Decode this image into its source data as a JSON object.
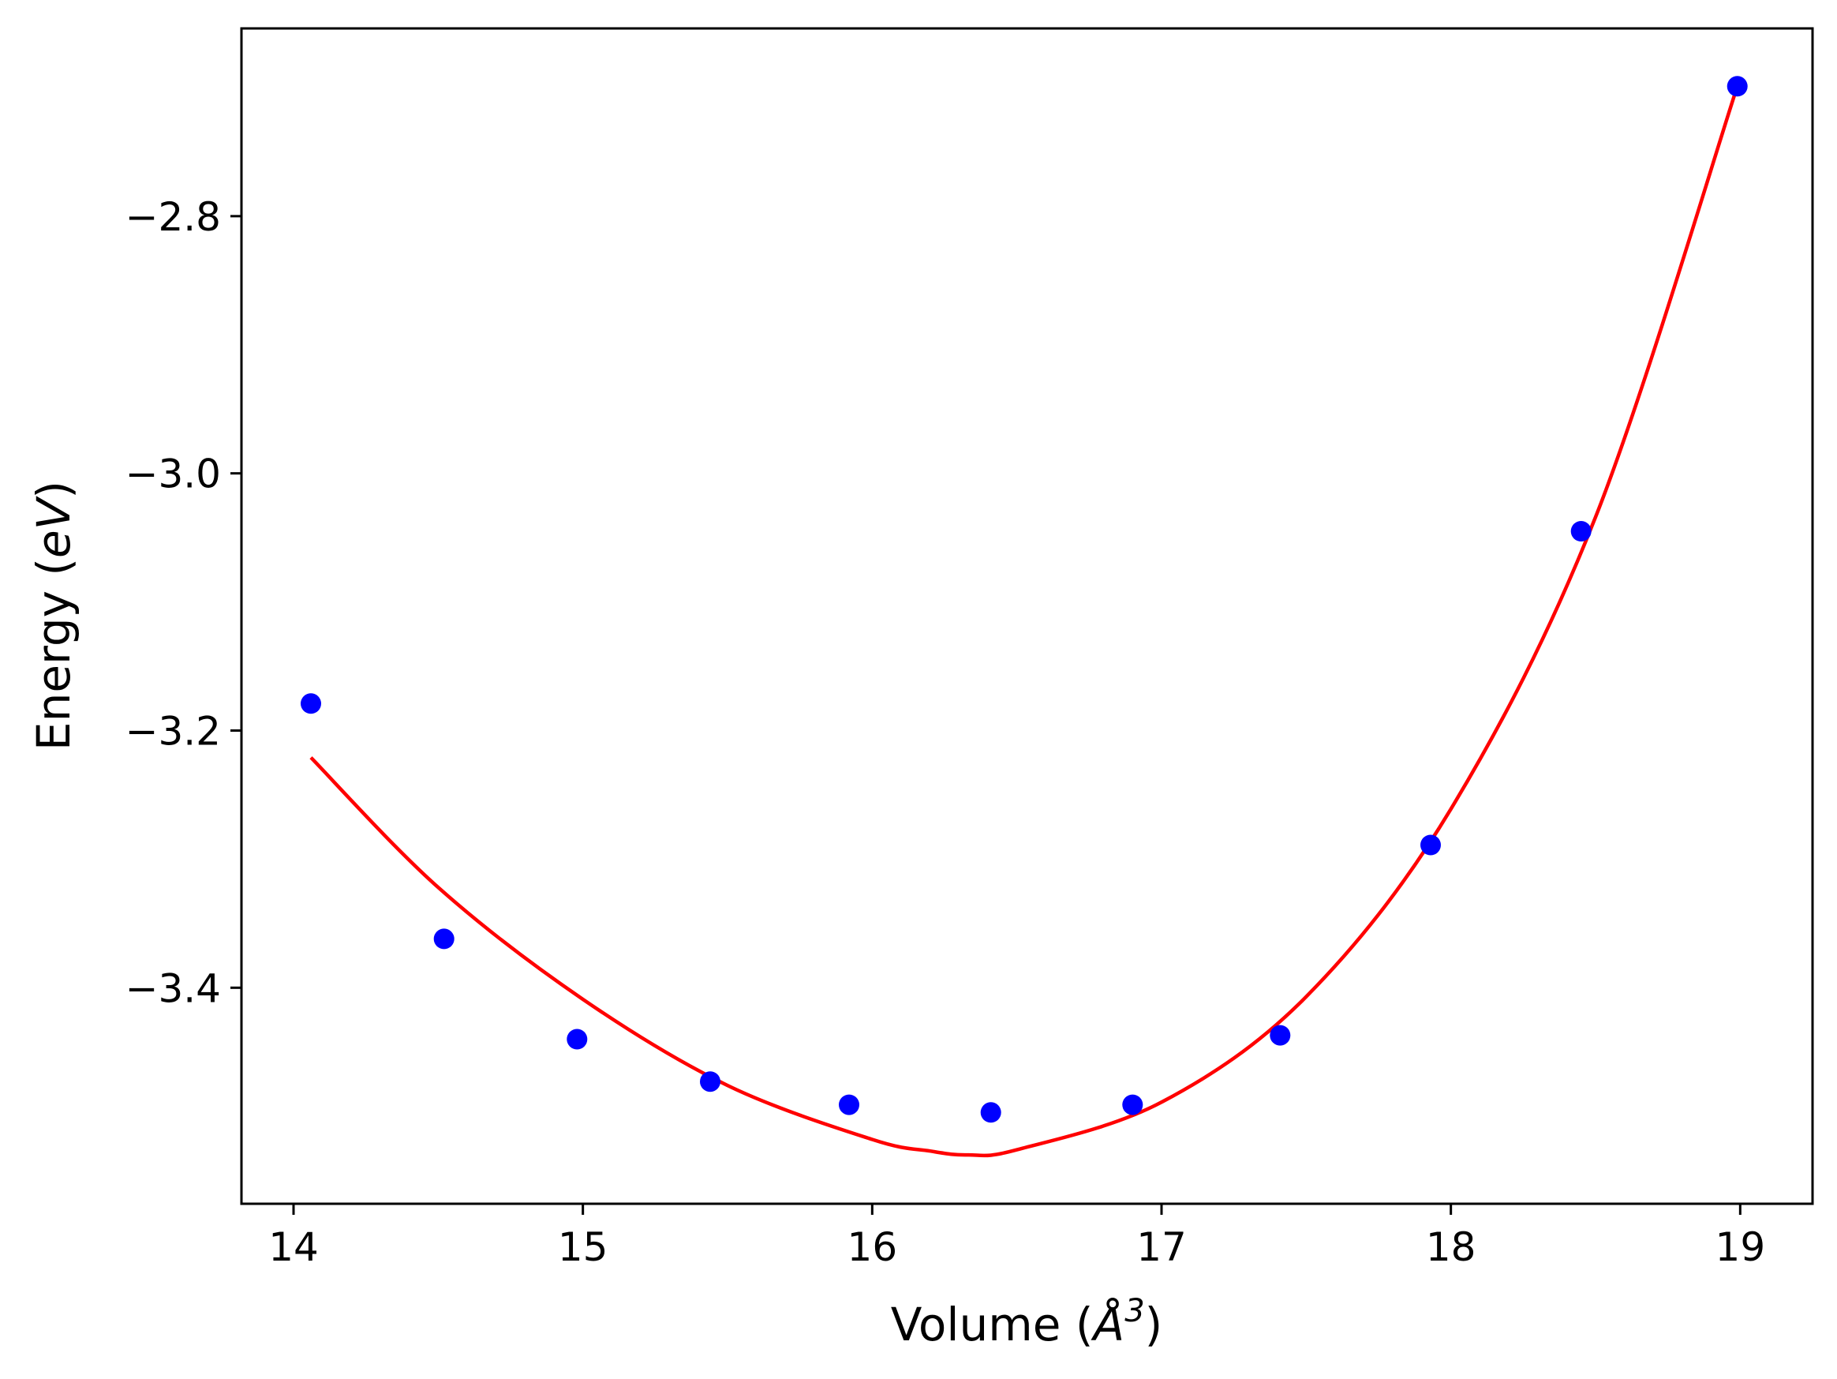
{
  "chart_data": {
    "type": "scatter",
    "title": "",
    "xlabel": "Volume ($\\AA^3$)",
    "xlabel_parts": {
      "text": "Volume (",
      "symbol": "Å",
      "superscript": "3",
      "close": ")"
    },
    "ylabel": "Energy ($eV$)",
    "ylabel_parts": {
      "text": "Energy (",
      "italic": "eV",
      "close": ")"
    },
    "xlim": [
      13.82,
      19.25
    ],
    "ylim": [
      -3.568,
      -2.654
    ],
    "x_ticks": [
      14,
      15,
      16,
      17,
      18,
      19
    ],
    "x_tick_labels": [
      "14",
      "15",
      "16",
      "17",
      "18",
      "19"
    ],
    "y_ticks": [
      -3.4,
      -3.2,
      -3.0,
      -2.8
    ],
    "y_tick_labels": [
      "−3.4",
      "−3.2",
      "−3.0",
      "−2.8"
    ],
    "grid": false,
    "legend": "none",
    "series": [
      {
        "kind": "points",
        "color": "#0000ff",
        "x": [
          14.06,
          14.52,
          14.98,
          15.44,
          15.92,
          16.41,
          16.9,
          17.41,
          17.93,
          18.45,
          18.99
        ],
        "y": [
          -3.179,
          -3.362,
          -3.44,
          -3.473,
          -3.491,
          -3.497,
          -3.491,
          -3.437,
          -3.289,
          -3.045,
          -2.699
        ]
      },
      {
        "kind": "line",
        "color": "#ff0000",
        "x": [
          14.06,
          14.5,
          15.0,
          15.5,
          16.0,
          16.2,
          16.33,
          16.5,
          17.0,
          17.5,
          18.0,
          18.5,
          18.99
        ],
        "y": [
          -3.221,
          -3.322,
          -3.409,
          -3.476,
          -3.518,
          -3.527,
          -3.53,
          -3.526,
          -3.489,
          -3.407,
          -3.261,
          -3.034,
          -2.699
        ]
      }
    ]
  }
}
